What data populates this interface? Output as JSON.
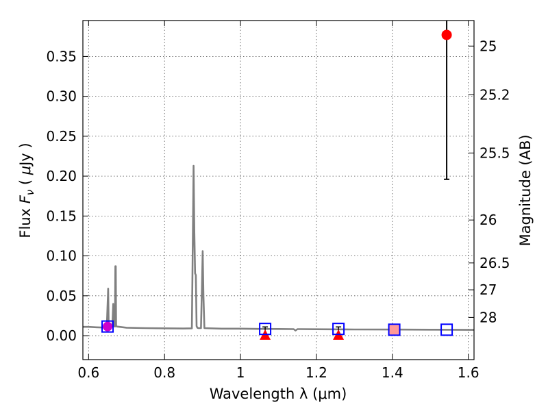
{
  "chart_data": {
    "type": "scatter",
    "xlabel": "Wavelength  λ (μm)",
    "ylabel": "Flux  F_ν  ( μJy )",
    "ylabel_parts": {
      "prefix": "Flux ",
      "symbol": "F",
      "subscript": "ν",
      "unit_open": " ( ",
      "unit_mu": "μ",
      "unit_rest": "Jy )"
    },
    "y2label": "Magnitude (AB)",
    "xlim": [
      0.585,
      1.615
    ],
    "ylim": [
      -0.03,
      0.395
    ],
    "grid": true,
    "x_ticks": [
      {
        "value": 0.6,
        "label": "0.6"
      },
      {
        "value": 0.8,
        "label": "0.8"
      },
      {
        "value": 1.0,
        "label": "1"
      },
      {
        "value": 1.2,
        "label": "1.2"
      },
      {
        "value": 1.4,
        "label": "1.4"
      },
      {
        "value": 1.6,
        "label": "1.6"
      }
    ],
    "y_ticks": [
      {
        "value": 0.0,
        "label": "0.00"
      },
      {
        "value": 0.05,
        "label": "0.05"
      },
      {
        "value": 0.1,
        "label": "0.10"
      },
      {
        "value": 0.15,
        "label": "0.15"
      },
      {
        "value": 0.2,
        "label": "0.20"
      },
      {
        "value": 0.25,
        "label": "0.25"
      },
      {
        "value": 0.3,
        "label": "0.30"
      },
      {
        "value": 0.35,
        "label": "0.35"
      }
    ],
    "y2_ticks": [
      {
        "flux": 0.363,
        "label": "25"
      },
      {
        "flux": 0.302,
        "label": "25.2"
      },
      {
        "flux": 0.229,
        "label": "25.5"
      },
      {
        "flux": 0.145,
        "label": "26"
      },
      {
        "flux": 0.0912,
        "label": "26.5"
      },
      {
        "flux": 0.0575,
        "label": "27"
      },
      {
        "flux": 0.0229,
        "label": "28"
      }
    ],
    "model_sed": {
      "color": "#808080",
      "x": [
        0.585,
        0.6,
        0.62,
        0.64,
        0.648,
        0.6515,
        0.653,
        0.6545,
        0.658,
        0.6625,
        0.665,
        0.6675,
        0.6695,
        0.6705,
        0.6715,
        0.6725,
        0.6745,
        0.7,
        0.75,
        0.8,
        0.85,
        0.872,
        0.8745,
        0.8765,
        0.8785,
        0.8805,
        0.8825,
        0.8845,
        0.8865,
        0.889,
        0.896,
        0.8985,
        0.9005,
        0.9025,
        0.905,
        0.95,
        1.0,
        1.05,
        1.1,
        1.14,
        1.145,
        1.15,
        1.16,
        1.2,
        1.3,
        1.4,
        1.5,
        1.615
      ],
      "y": [
        0.011,
        0.011,
        0.0105,
        0.0102,
        0.0105,
        0.059,
        0.012,
        0.0105,
        0.0105,
        0.0115,
        0.04,
        0.012,
        0.0115,
        0.087,
        0.087,
        0.0125,
        0.0115,
        0.01,
        0.0095,
        0.0092,
        0.009,
        0.0092,
        0.12,
        0.213,
        0.13,
        0.078,
        0.076,
        0.012,
        0.01,
        0.0095,
        0.0095,
        0.06,
        0.106,
        0.05,
        0.0095,
        0.0088,
        0.0088,
        0.0085,
        0.0084,
        0.0082,
        0.0065,
        0.0082,
        0.0082,
        0.008,
        0.0078,
        0.0077,
        0.0075,
        0.0073
      ]
    },
    "model_photometry": {
      "color": "#0000ff",
      "x": [
        0.65,
        1.065,
        1.258,
        1.405,
        1.543
      ],
      "y": [
        0.0115,
        0.0085,
        0.0085,
        0.0075,
        0.0075
      ]
    },
    "photometry_markers": {
      "purple": {
        "x": 0.65,
        "y": 0.0115,
        "err": 0.005,
        "color": "#cc00cc"
      },
      "pink_square": {
        "x": 1.405,
        "y": 0.0075,
        "color": "#ff9999"
      },
      "red_circle": {
        "x": 1.543,
        "y": 0.377,
        "err_low": 0.196,
        "err_high": 0.395,
        "color": "#ff0000"
      }
    },
    "upper_limits": {
      "color": "#ff0000",
      "x": [
        1.065,
        1.258
      ],
      "y": [
        0.0,
        0.0
      ],
      "err_top": [
        0.011,
        0.011
      ]
    }
  }
}
